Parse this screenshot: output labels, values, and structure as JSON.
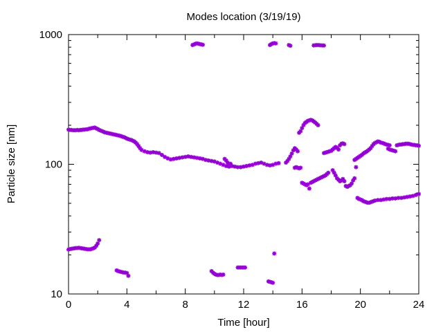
{
  "chart_data": {
    "type": "scatter",
    "title": "Modes location (3/19/19)",
    "xlabel": "Time [hour]",
    "ylabel": "Particle size [nm]",
    "xlim": [
      0,
      24
    ],
    "ylim": [
      10,
      1000
    ],
    "yscale": "log",
    "x_ticks": [
      "0",
      "4",
      "8",
      "12",
      "16",
      "20",
      "24"
    ],
    "y_ticks": [
      "10",
      "100",
      "1000"
    ],
    "grid": false,
    "legend": "none",
    "marker_color": "#9400d3",
    "marker": "star",
    "series": [
      {
        "x": [
          0,
          0.1,
          0.2,
          0.3,
          0.4,
          0.5,
          0.6,
          0.7,
          0.8,
          0.9,
          1.0,
          1.1,
          1.2,
          1.3,
          1.4,
          1.5,
          1.6,
          1.7,
          1.8,
          1.9,
          2.0,
          2.1,
          2.2,
          2.3,
          2.4,
          2.5,
          2.6,
          2.7,
          2.8,
          2.9,
          3.0,
          3.1,
          3.2,
          3.3,
          3.4,
          3.5,
          3.6,
          3.7,
          3.8,
          3.9,
          4.0,
          4.1,
          4.2,
          4.3,
          4.4,
          4.5,
          4.6,
          4.7,
          4.8,
          4.9,
          5.0,
          5.2,
          5.4,
          5.6,
          5.8,
          6.0,
          6.2,
          6.4,
          6.6,
          6.8,
          7.0,
          7.2,
          7.4,
          7.6,
          7.8,
          8.0,
          8.2,
          8.4,
          8.6,
          8.8,
          9.0,
          9.2,
          9.4,
          9.6,
          9.8,
          10.0,
          10.2,
          10.4,
          10.6,
          10.8,
          11.0,
          11.2,
          11.4,
          11.6,
          11.8,
          12.0,
          12.2,
          12.4,
          12.6,
          12.8,
          13.0,
          13.2,
          13.4,
          13.6,
          13.8,
          14.0,
          14.2,
          14.4
        ],
        "y": [
          185,
          184,
          184,
          183,
          183,
          183,
          184,
          183,
          184,
          184,
          185,
          185,
          186,
          186,
          188,
          189,
          190,
          191,
          192,
          189,
          187,
          184,
          182,
          180,
          178,
          176,
          175,
          174,
          173,
          172,
          171,
          170,
          169,
          168,
          167,
          166,
          165,
          163,
          162,
          160,
          158,
          156,
          155,
          154,
          152,
          150,
          147,
          143,
          138,
          133,
          129,
          126,
          124,
          123,
          124,
          123,
          122,
          118,
          114,
          111,
          109,
          110,
          111,
          112,
          113,
          114,
          115,
          114,
          113,
          112,
          111,
          110,
          108,
          107,
          106,
          105,
          103,
          101,
          99,
          97,
          96,
          97,
          96,
          95,
          95,
          96,
          97,
          98,
          99,
          101,
          102,
          103,
          101,
          99,
          98,
          99,
          101,
          102
        ]
      },
      {
        "x": [
          0,
          0.1,
          0.2,
          0.3,
          0.4,
          0.5,
          0.6,
          0.7,
          0.8,
          0.9,
          1.0,
          1.1,
          1.2,
          1.3,
          1.4,
          1.5,
          1.6,
          1.7,
          1.8,
          1.9,
          2.0,
          2.1
        ],
        "y": [
          22,
          22.2,
          22.3,
          22.4,
          22.5,
          22.6,
          22.6,
          22.7,
          22.6,
          22.5,
          22.4,
          22.3,
          22.2,
          22.1,
          22.1,
          22.1,
          22.3,
          22.5,
          22.8,
          23.5,
          24.5,
          26
        ]
      },
      {
        "x": [
          3.3,
          3.4,
          3.5,
          3.6,
          3.7,
          3.8,
          3.9,
          4.0,
          4.1
        ],
        "y": [
          15.2,
          15.0,
          14.9,
          14.8,
          14.7,
          14.6,
          14.6,
          14.5,
          13.8
        ]
      },
      {
        "x": [
          8.5,
          8.6,
          8.7,
          8.8,
          8.9,
          9.0,
          9.1,
          9.2
        ],
        "y": [
          830,
          840,
          850,
          855,
          850,
          845,
          840,
          835
        ]
      },
      {
        "x": [
          9.8,
          9.9,
          10.0,
          10.1,
          10.2,
          10.3,
          10.4,
          10.5,
          10.6,
          10.7,
          10.8,
          10.9,
          11.0,
          11.1
        ],
        "y": [
          15,
          14.6,
          14.3,
          14.1,
          14.0,
          14.0,
          14.1,
          14.0,
          14.1,
          110,
          107,
          103,
          99,
          101
        ]
      },
      {
        "x": [
          11.6,
          11.7,
          11.8,
          11.9,
          12.0,
          12.1
        ],
        "y": [
          16,
          16,
          16,
          16,
          16,
          16
        ]
      },
      {
        "x": [
          13.7,
          13.8,
          13.9,
          14.0,
          14.1
        ],
        "y": [
          12.5,
          12.4,
          12.3,
          12.2,
          20.5
        ]
      },
      {
        "x": [
          13.8,
          13.9,
          14.0,
          14.1,
          14.2,
          15.1,
          15.2,
          16.8,
          16.9,
          17.0,
          17.1,
          17.2,
          17.3,
          17.4,
          17.5
        ],
        "y": [
          830,
          845,
          855,
          860,
          855,
          830,
          820,
          825,
          828,
          830,
          830,
          828,
          826,
          825,
          824
        ]
      },
      {
        "x": [
          14.9,
          15.0,
          15.1,
          15.2,
          15.3,
          15.4,
          15.5,
          15.6,
          15.7,
          15.8,
          15.9,
          16.0,
          16.1,
          16.2,
          16.3,
          16.4,
          16.5,
          16.6,
          16.7,
          16.8,
          16.9,
          17.0,
          17.1
        ],
        "y": [
          103,
          106,
          110,
          115,
          121,
          128,
          133,
          130,
          126,
          175,
          180,
          190,
          200,
          208,
          212,
          216,
          218,
          220,
          218,
          214,
          210,
          205,
          200
        ]
      },
      {
        "x": [
          15.5,
          15.6,
          15.7,
          15.8,
          15.9,
          16.0,
          16.1,
          16.2,
          16.3,
          16.4,
          16.5,
          16.6,
          16.7,
          16.8,
          16.9,
          17.0,
          17.1,
          17.2,
          17.3,
          17.4,
          17.5,
          17.6,
          17.7,
          17.8
        ],
        "y": [
          94,
          95,
          94,
          93,
          94,
          72,
          71,
          70,
          69,
          70,
          65,
          72,
          73,
          74,
          75,
          76,
          77,
          78,
          79,
          80,
          81,
          82,
          84,
          86
        ]
      },
      {
        "x": [
          17.5,
          17.6,
          17.7,
          17.8,
          17.9,
          18.0,
          18.1,
          18.2,
          18.3,
          18.4,
          18.5,
          18.6,
          18.7,
          18.8,
          18.9
        ],
        "y": [
          122,
          123,
          124,
          125,
          126,
          127,
          130,
          133,
          136,
          134,
          130,
          140,
          144,
          145,
          143
        ]
      },
      {
        "x": [
          18.1,
          18.2,
          18.3,
          18.4,
          18.5,
          18.6,
          18.7,
          18.8,
          18.9,
          19.0,
          19.1,
          19.2,
          19.3,
          19.4,
          19.5,
          19.6,
          19.7
        ],
        "y": [
          90,
          86,
          82,
          78,
          76,
          74,
          75,
          77,
          74,
          68,
          67,
          68,
          69,
          71,
          75,
          78,
          95
        ]
      },
      {
        "x": [
          19.6,
          19.7,
          19.8,
          19.9,
          20.0,
          20.1,
          20.2,
          20.3,
          20.4,
          20.5,
          20.6,
          20.7,
          20.8,
          20.9,
          21.0,
          21.1,
          21.2,
          21.3,
          21.4,
          21.5,
          21.6,
          21.7,
          21.8,
          21.9,
          22.0
        ],
        "y": [
          108,
          110,
          112,
          114,
          116,
          118,
          121,
          123,
          125,
          127,
          130,
          133,
          138,
          143,
          146,
          148,
          150,
          149,
          147,
          146,
          145,
          143,
          142,
          141,
          140
        ]
      },
      {
        "x": [
          21.9,
          22.0,
          22.1,
          22.2,
          22.3,
          22.4,
          22.5,
          22.6,
          22.7,
          22.8,
          22.9,
          23.0,
          23.1,
          23.2,
          23.3,
          23.4,
          23.5,
          23.6,
          23.7,
          23.8,
          23.9,
          24.0
        ],
        "y": [
          132,
          130,
          129,
          128,
          127,
          126,
          140,
          141,
          142,
          142,
          143,
          143,
          144,
          144,
          144,
          143,
          142,
          141,
          141,
          140,
          140,
          139
        ]
      },
      {
        "x": [
          19.8,
          19.9,
          20.0,
          20.1,
          20.2,
          20.3,
          20.4,
          20.5,
          20.6,
          20.7,
          20.8,
          20.9,
          21.0,
          21.2,
          21.4,
          21.6,
          21.8,
          22.0,
          22.2,
          22.4,
          22.6,
          22.8,
          23.0,
          23.2,
          23.4,
          23.6,
          23.8,
          24.0
        ],
        "y": [
          55,
          54,
          53.5,
          53,
          52,
          51.5,
          51,
          50.5,
          50.5,
          51,
          51.5,
          52,
          52.5,
          53,
          53,
          53.5,
          54,
          54,
          54.5,
          54.5,
          55,
          55,
          55.5,
          56,
          56.5,
          57,
          58,
          59
        ]
      }
    ]
  }
}
